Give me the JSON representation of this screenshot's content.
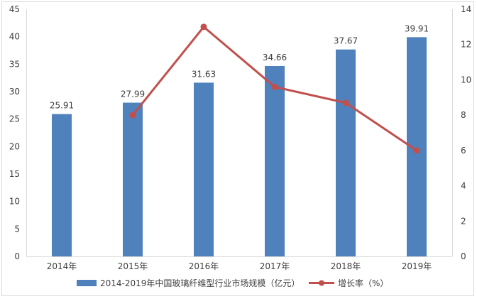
{
  "chart_data": {
    "type": "bar",
    "categories": [
      "2014年",
      "2015年",
      "2016年",
      "2017年",
      "2018年",
      "2019年"
    ],
    "series": [
      {
        "name": "2014-2019年中国玻璃纤维型行业市场规模（亿元）",
        "type": "bar",
        "axis": "left",
        "values": [
          25.91,
          27.99,
          31.63,
          34.66,
          37.67,
          39.91
        ],
        "data_labels": [
          "25.91",
          "27.99",
          "31.63",
          "34.66",
          "37.67",
          "39.91"
        ],
        "color": "#4f81bd"
      },
      {
        "name": "增长率（%）",
        "type": "line",
        "axis": "right",
        "values": [
          null,
          8.0,
          13.0,
          9.6,
          8.7,
          6.0
        ],
        "color": "#c0504d"
      }
    ],
    "y_left": {
      "min": 0,
      "max": 45,
      "step": 5,
      "ticks": [
        "0",
        "5",
        "10",
        "15",
        "20",
        "25",
        "30",
        "35",
        "40",
        "45"
      ]
    },
    "y_right": {
      "min": 0,
      "max": 14,
      "step": 2,
      "ticks": [
        "0",
        "2",
        "4",
        "6",
        "8",
        "10",
        "12",
        "14"
      ]
    },
    "grid": false,
    "legend": "bottom"
  }
}
